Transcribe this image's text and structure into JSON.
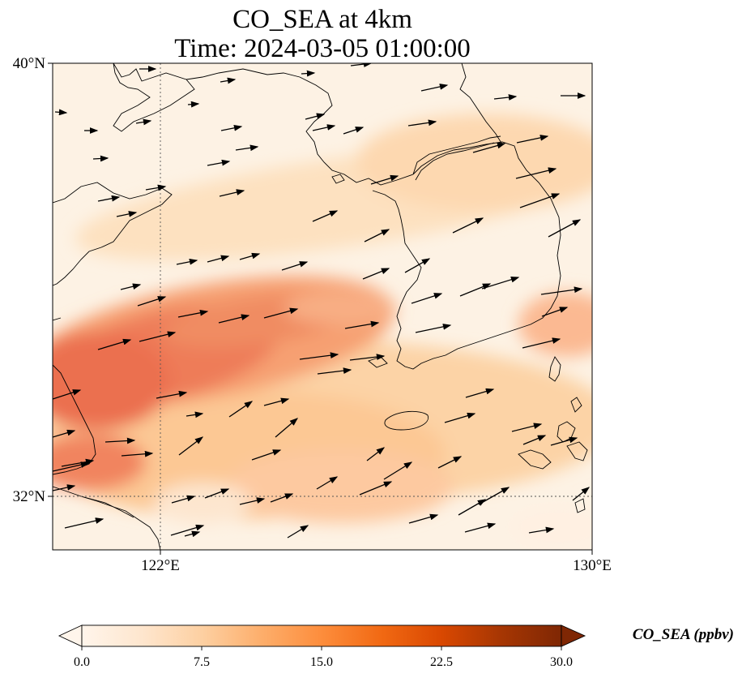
{
  "figure": {
    "title_line1": "CO_SEA at 4km",
    "title_line2": "Time: 2024-03-05 01:00:00"
  },
  "map": {
    "lat_ticks": [
      "40°N",
      "32°N"
    ],
    "lon_ticks": [
      "122°E",
      "130°E"
    ],
    "gridline_style": "dotted",
    "vector_color": "#000000",
    "coastline_color": "#000000"
  },
  "colorbar": {
    "label": "CO_SEA (ppbv)",
    "ticks": [
      "0.0",
      "7.5",
      "15.0",
      "22.5",
      "30.0"
    ],
    "colormap": [
      "#fff5eb",
      "#fee6ce",
      "#fdd0a2",
      "#fdae6b",
      "#fd8d3c",
      "#f16913",
      "#d94801",
      "#a63603",
      "#7f2704"
    ],
    "extend": "both"
  }
}
